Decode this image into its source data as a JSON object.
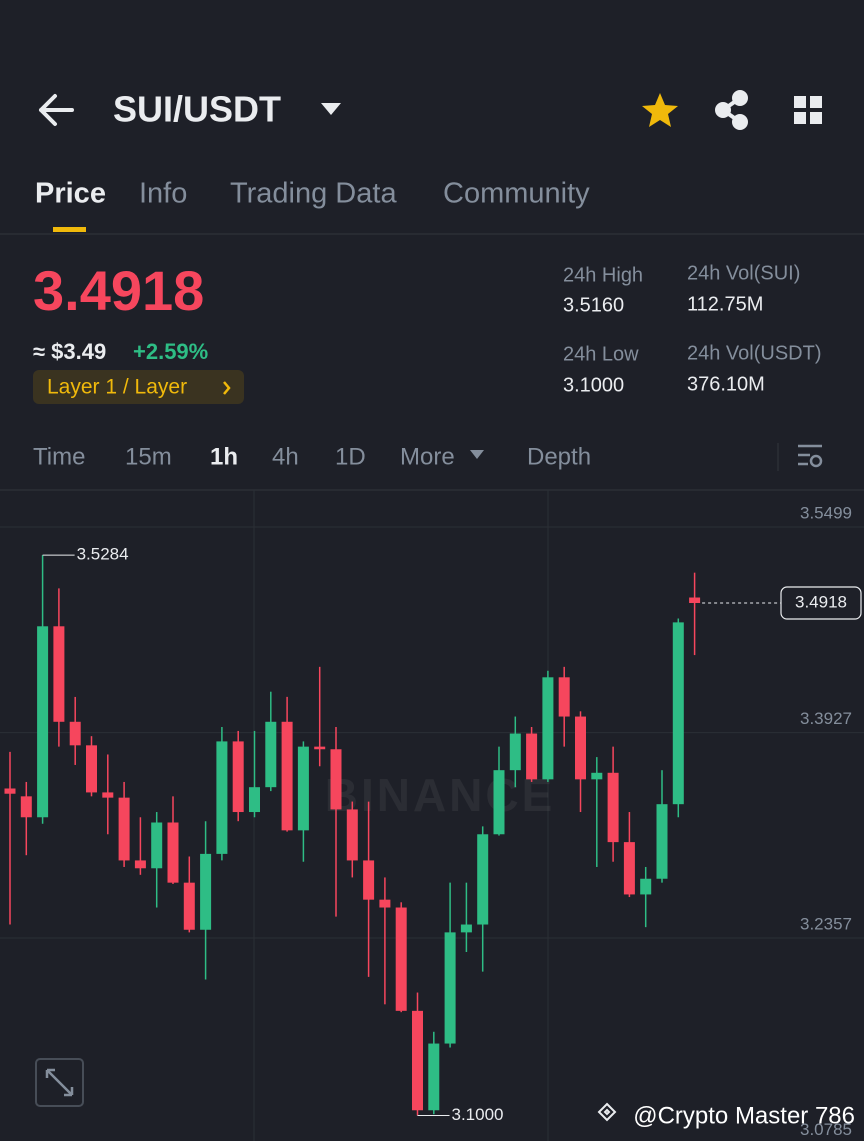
{
  "header": {
    "pair": "SUI/USDT"
  },
  "tabs": [
    "Price",
    "Info",
    "Trading Data",
    "Community"
  ],
  "active_tab": 0,
  "price": {
    "last": "3.4918",
    "approx": "≈ $3.49",
    "change": "+2.59%",
    "tag": "Layer 1 / Layer"
  },
  "stats": [
    {
      "label": "24h High",
      "value": "3.5160"
    },
    {
      "label": "24h Vol(SUI)",
      "value": "112.75M"
    },
    {
      "label": "24h Low",
      "value": "3.1000"
    },
    {
      "label": "24h Vol(USDT)",
      "value": "376.10M"
    }
  ],
  "timeframes": [
    "Time",
    "15m",
    "1h",
    "4h",
    "1D",
    "More",
    "Depth"
  ],
  "active_timeframe": 2,
  "watermark": "BINANCE",
  "credit": "@Crypto Master 786",
  "chart_data": {
    "type": "candlestick",
    "up_color": "#2ebd85",
    "down_color": "#f6465d",
    "ylim": [
      3.0805,
      3.5782
    ],
    "yticks": [
      3.5499,
      3.3927,
      3.2357,
      3.0785
    ],
    "grid": true,
    "candles": {
      "open": [
        3.35,
        3.344,
        3.328,
        3.474,
        3.401,
        3.383,
        3.347,
        3.343,
        3.295,
        3.289,
        3.324,
        3.278,
        3.242,
        3.3,
        3.386,
        3.332,
        3.351,
        3.401,
        3.318,
        3.382,
        3.38,
        3.334,
        3.295,
        3.265,
        3.259,
        3.18,
        3.104,
        3.155,
        3.24,
        3.246,
        3.315,
        3.364,
        3.392,
        3.357,
        3.435,
        3.405,
        3.357,
        3.362,
        3.309,
        3.269,
        3.281,
        3.338,
        3.496
      ],
      "high": [
        3.378,
        3.355,
        3.5284,
        3.503,
        3.42,
        3.39,
        3.376,
        3.355,
        3.328,
        3.332,
        3.344,
        3.298,
        3.325,
        3.397,
        3.394,
        3.394,
        3.424,
        3.42,
        3.386,
        3.443,
        3.397,
        3.34,
        3.34,
        3.282,
        3.263,
        3.194,
        3.164,
        3.278,
        3.278,
        3.321,
        3.382,
        3.405,
        3.397,
        3.44,
        3.443,
        3.409,
        3.374,
        3.382,
        3.332,
        3.29,
        3.364,
        3.48,
        3.515
      ],
      "low": [
        3.246,
        3.299,
        3.323,
        3.382,
        3.368,
        3.344,
        3.315,
        3.29,
        3.284,
        3.259,
        3.277,
        3.24,
        3.204,
        3.295,
        3.325,
        3.328,
        3.348,
        3.317,
        3.294,
        3.367,
        3.252,
        3.282,
        3.206,
        3.185,
        3.179,
        3.1,
        3.101,
        3.152,
        3.225,
        3.21,
        3.314,
        3.351,
        3.355,
        3.355,
        3.382,
        3.332,
        3.29,
        3.294,
        3.267,
        3.244,
        3.278,
        3.328,
        3.452
      ],
      "close": [
        3.346,
        3.328,
        3.474,
        3.401,
        3.383,
        3.347,
        3.343,
        3.295,
        3.289,
        3.324,
        3.278,
        3.242,
        3.3,
        3.386,
        3.332,
        3.351,
        3.401,
        3.318,
        3.382,
        3.38,
        3.334,
        3.295,
        3.265,
        3.259,
        3.18,
        3.104,
        3.155,
        3.24,
        3.246,
        3.315,
        3.364,
        3.392,
        3.357,
        3.435,
        3.405,
        3.357,
        3.362,
        3.309,
        3.269,
        3.281,
        3.338,
        3.477,
        3.4918
      ]
    },
    "annotations": [
      {
        "label": "3.5284"
      },
      {
        "label": "3.1000"
      }
    ]
  }
}
